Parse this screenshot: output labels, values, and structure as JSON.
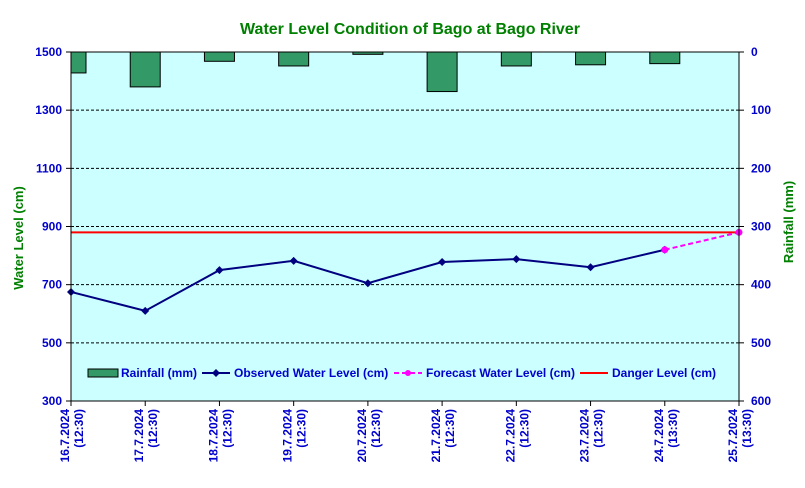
{
  "chart_data": {
    "type": "line",
    "title": "Water Level Condition of Bago at Bago River",
    "ylabel": "Water Level (cm)",
    "y2label": "Rainfall (mm)",
    "ylim": [
      300,
      1500
    ],
    "yticks": [
      300,
      500,
      700,
      900,
      1100,
      1300,
      1500
    ],
    "y2lim": [
      0,
      600
    ],
    "y2ticks": [
      0,
      100,
      200,
      300,
      400,
      500,
      600
    ],
    "y2_inverted": true,
    "grid": true,
    "legend_position": "bottom",
    "categories": [
      [
        "16.7.2024",
        "(12:30)"
      ],
      [
        "17.7.2024",
        "(12:30)"
      ],
      [
        "18.7.2024",
        "(12:30)"
      ],
      [
        "19.7.2024",
        "(12:30)"
      ],
      [
        "20.7.2024",
        "(12:30)"
      ],
      [
        "21.7.2024",
        "(12:30)"
      ],
      [
        "22.7.2024",
        "(12:30)"
      ],
      [
        "23.7.2024",
        "(12:30)"
      ],
      [
        "24.7.2024",
        "(13:30)"
      ],
      [
        "25.7.2024",
        "(13:30)"
      ]
    ],
    "rainfall": {
      "name": "Rainfall (mm)",
      "color": "#339966",
      "values": [
        36,
        60,
        16,
        24,
        4,
        68,
        24,
        22,
        20,
        null
      ]
    },
    "observed": {
      "name": "Observed Water Level (cm)",
      "color": "#000080",
      "values": [
        675,
        610,
        750,
        782,
        705,
        778,
        788,
        760,
        820,
        null
      ]
    },
    "forecast": {
      "name": "Forecast Water Level (cm)",
      "color": "#ff00ff",
      "values": [
        null,
        null,
        null,
        null,
        null,
        null,
        null,
        null,
        820,
        880
      ]
    },
    "danger": {
      "name": "Danger Level (cm)",
      "color": "#ff0000",
      "value": 880
    }
  },
  "colors": {
    "plot_background": "#ccffff",
    "title": "#008000",
    "axis_title": "#008000",
    "tick_labels": "#0000cc",
    "legend_text": "#0000cc"
  }
}
